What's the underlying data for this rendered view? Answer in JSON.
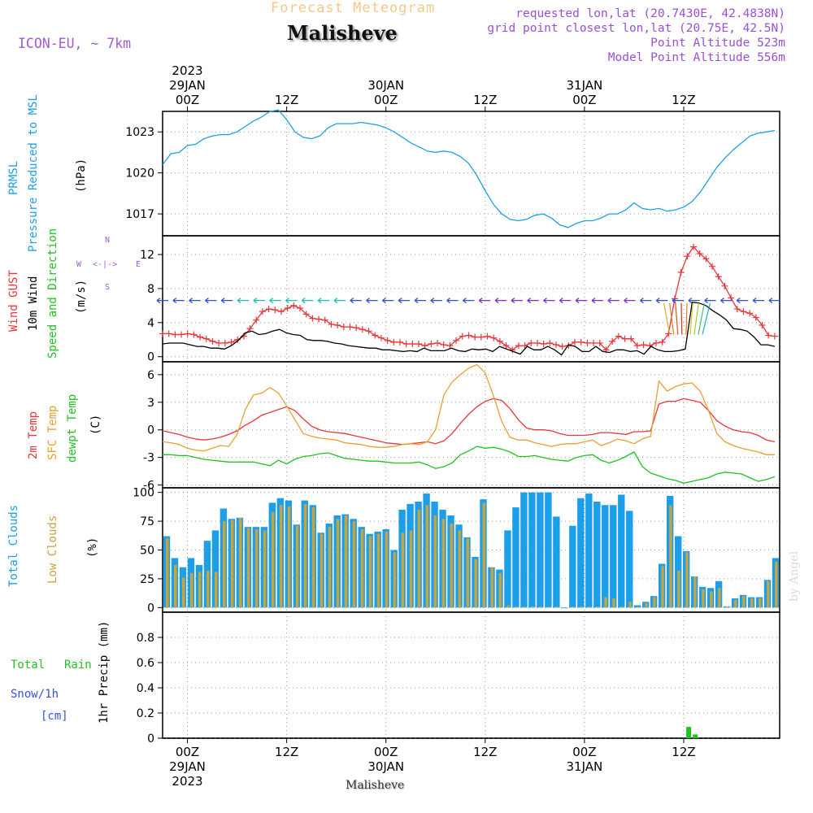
{
  "header": {
    "faint_title": "Forecast Meteogram",
    "location": "Malisheve",
    "model": "ICON-EU, ~ 7km",
    "requested": "requested lon,lat (20.7430E, 42.4838N)",
    "gridpoint": "grid point closest lon,lat (20.75E, 42.5N)",
    "point_alt": "Point Altitude 523m",
    "model_alt": "Model Point Altitude 556m",
    "credit": "by Angel",
    "footer_location": "Malisheve"
  },
  "time_axis": {
    "top": [
      {
        "t": 3,
        "lines": [
          "2023",
          "29JAN",
          "00Z"
        ]
      },
      {
        "t": 15,
        "lines": [
          "12Z"
        ]
      },
      {
        "t": 27,
        "lines": [
          "30JAN",
          "00Z"
        ]
      },
      {
        "t": 39,
        "lines": [
          "12Z"
        ]
      },
      {
        "t": 51,
        "lines": [
          "31JAN",
          "00Z"
        ]
      },
      {
        "t": 63,
        "lines": [
          "12Z"
        ]
      }
    ],
    "bottom": [
      {
        "t": 3,
        "lines": [
          "00Z",
          "29JAN",
          "2023"
        ]
      },
      {
        "t": 15,
        "lines": [
          "12Z"
        ]
      },
      {
        "t": 27,
        "lines": [
          "00Z",
          "30JAN"
        ]
      },
      {
        "t": 39,
        "lines": [
          "12Z"
        ]
      },
      {
        "t": 51,
        "lines": [
          "00Z",
          "31JAN"
        ]
      },
      {
        "t": 63,
        "lines": [
          "12Z"
        ]
      }
    ]
  },
  "panel_labels": {
    "pressure": {
      "line1": "PRMSL",
      "line2": "Pressure Reduced to MSL",
      "unit": "(hPa)",
      "color1": "#1ca0e6",
      "color2": "#1ca0e6"
    },
    "wind": {
      "gust": "Wind GUST",
      "wind10": "10m Wind",
      "speed": "Speed and Direction",
      "unit": "(m/s)",
      "compass_n": "N",
      "compass_s": "S",
      "compass_w": "W",
      "compass_e": "E",
      "compass_arrows": "<-|->"
    },
    "temp": {
      "t2m": "2m Temp",
      "sfc": "SFC Temp",
      "dew": "dewpt Temp",
      "unit": "(C)"
    },
    "clouds": {
      "total": "Total Clouds",
      "low": "Low Clouds",
      "unit": "(%)"
    },
    "precip": {
      "total": "Total",
      "rain": "Rain",
      "snow": "Snow/1h",
      "cm": "[cm]",
      "unit": "1hr Precip (mm)"
    }
  },
  "colors": {
    "pressure": "#1ca0e6",
    "gust": "#e8363b",
    "wind10": "#000000",
    "t2m": "#e8363b",
    "sfc": "#e8a030",
    "dew": "#1fc21f",
    "total_clouds": "#1c9ee8",
    "low_clouds": "#c9a33c",
    "rain": "#1fc21f",
    "snow": "#3a4fe6"
  },
  "chart_data": [
    {
      "type": "line",
      "name": "PRMSL",
      "unit": "hPa",
      "x_unit": "hours from 28JAN 21Z",
      "yticks": [
        1017,
        1020,
        1023
      ],
      "ylim": [
        1015.4,
        1024.5
      ],
      "x": [
        0,
        1,
        2,
        3,
        4,
        5,
        6,
        7,
        8,
        9,
        10,
        11,
        12,
        13,
        14,
        15,
        16,
        17,
        18,
        19,
        20,
        21,
        22,
        23,
        24,
        25,
        26,
        27,
        28,
        29,
        30,
        31,
        32,
        33,
        34,
        35,
        36,
        37,
        38,
        39,
        40,
        41,
        42,
        43,
        44,
        45,
        46,
        47,
        48,
        49,
        50,
        51,
        52,
        53,
        54,
        55,
        56,
        57,
        58,
        59,
        60,
        61,
        62,
        63,
        64,
        65,
        66,
        67,
        68,
        69,
        70,
        71,
        72,
        73,
        74
      ],
      "values": [
        1020.6,
        1021.4,
        1021.5,
        1022.0,
        1022.1,
        1022.5,
        1022.7,
        1022.8,
        1022.8,
        1023.0,
        1023.4,
        1023.8,
        1024.1,
        1024.5,
        1024.6,
        1023.9,
        1023.0,
        1022.6,
        1022.5,
        1022.7,
        1023.3,
        1023.6,
        1023.6,
        1023.6,
        1023.7,
        1023.6,
        1023.5,
        1023.3,
        1023.0,
        1022.6,
        1022.2,
        1021.9,
        1021.6,
        1021.5,
        1021.6,
        1021.5,
        1021.2,
        1020.7,
        1019.8,
        1018.7,
        1017.7,
        1017.0,
        1016.6,
        1016.5,
        1016.6,
        1016.9,
        1017.0,
        1016.7,
        1016.2,
        1016.0,
        1016.3,
        1016.5,
        1016.5,
        1016.7,
        1017.0,
        1017.0,
        1017.3,
        1017.8,
        1017.4,
        1017.3,
        1017.4,
        1017.2,
        1017.3,
        1017.5,
        1017.9,
        1018.6,
        1019.5,
        1020.4,
        1021.1,
        1021.7,
        1022.2,
        1022.7,
        1022.9,
        1023.0,
        1023.1
      ]
    },
    {
      "type": "line",
      "name": "Wind",
      "unit": "m/s",
      "yticks": [
        0,
        4,
        8,
        12
      ],
      "ylim": [
        -0.6,
        14.2
      ],
      "series": [
        {
          "name": "Wind GUST",
          "values": [
            2.7,
            2.7,
            2.6,
            2.6,
            2.7,
            2.6,
            2.3,
            2.1,
            1.8,
            1.6,
            1.6,
            1.7,
            2.0,
            2.4,
            3.3,
            4.3,
            5.3,
            5.6,
            5.5,
            5.3,
            5.7,
            6.0,
            5.7,
            5.0,
            4.5,
            4.4,
            4.3,
            3.8,
            3.7,
            3.5,
            3.5,
            3.4,
            3.2,
            3.0,
            2.5,
            2.2,
            1.9,
            1.7,
            1.7,
            1.5,
            1.5,
            1.5,
            1.3,
            1.5,
            1.6,
            1.4,
            1.3,
            1.9,
            2.4,
            2.5,
            2.3,
            2.3,
            2.4,
            2.2,
            1.8,
            1.3,
            0.8,
            1.3,
            1.3,
            1.6,
            1.6,
            1.5,
            1.6,
            1.4,
            1.2,
            1.3,
            1.7,
            1.7,
            1.6,
            1.6,
            1.6,
            0.8,
            1.8,
            2.4,
            2.1,
            2.1,
            1.3,
            1.4,
            1.3,
            1.6,
            1.7,
            2.7,
            6.8,
            9.9,
            11.8,
            12.9,
            12.1,
            11.5,
            10.6,
            9.4,
            8.3,
            6.9,
            5.6,
            5.3,
            5.1,
            4.6,
            3.7,
            2.5,
            2.4
          ]
        },
        {
          "name": "10m Wind",
          "values": [
            1.5,
            1.6,
            1.6,
            1.6,
            1.4,
            1.2,
            1.2,
            1.0,
            1.0,
            0.9,
            1.3,
            1.9,
            2.8,
            3.0,
            2.6,
            2.7,
            3.0,
            3.2,
            2.8,
            2.6,
            2.5,
            2.0,
            1.9,
            1.9,
            1.8,
            1.6,
            1.5,
            1.3,
            1.2,
            1.1,
            1.0,
            1.0,
            0.8,
            0.8,
            0.7,
            0.6,
            0.7,
            0.6,
            1.0,
            0.7,
            0.7,
            0.7,
            1.0,
            0.7,
            0.6,
            0.9,
            0.8,
            0.9,
            0.6,
            1.2,
            0.9,
            0.6,
            0.3,
            1.2,
            0.8,
            0.8,
            1.2,
            0.8,
            0.2,
            1.4,
            1.2,
            0.6,
            0.6,
            1.2,
            0.6,
            0.5,
            0.8,
            0.8,
            0.6,
            0.7,
            0.3,
            1.2,
            0.8,
            0.6,
            0.6,
            0.7,
            0.9,
            6.4,
            6.3,
            6.0,
            5.4,
            4.9,
            4.3,
            3.3,
            3.2,
            3.0,
            2.3,
            1.4,
            1.4,
            1.2
          ]
        },
        {
          "name": "wind barbs",
          "values": [
            6.6,
            6.6,
            6.6,
            6.6,
            6.6,
            6.6,
            6.6,
            6.6,
            6.6,
            6.6,
            6.6,
            6.6,
            6.6,
            6.6,
            6.6,
            6.6,
            6.6,
            6.6,
            6.6,
            6.6,
            6.6,
            6.6,
            6.6,
            6.6,
            6.6,
            6.6,
            6.6,
            6.6,
            6.6,
            6.6,
            6.6,
            6.6,
            6.6,
            6.6,
            6.6,
            6.6,
            6.6,
            6.6,
            6.6
          ]
        }
      ]
    },
    {
      "type": "line",
      "name": "Temperature",
      "unit": "C",
      "yticks": [
        -6,
        -3,
        0,
        3,
        6
      ],
      "ylim": [
        -6.3,
        7.4
      ],
      "x": [
        0,
        1,
        2,
        3,
        4,
        5,
        6,
        7,
        8,
        9,
        10,
        11,
        12,
        13,
        14,
        15,
        16,
        17,
        18,
        19,
        20,
        21,
        22,
        23,
        24,
        25,
        26,
        27,
        28,
        29,
        30,
        31,
        32,
        33,
        34,
        35,
        36,
        37,
        38,
        39,
        40,
        41,
        42,
        43,
        44,
        45,
        46,
        47,
        48,
        49,
        50,
        51,
        52,
        53,
        54,
        55,
        56,
        57,
        58,
        59,
        60,
        61,
        62,
        63,
        64,
        65,
        66,
        67,
        68,
        69,
        70,
        71,
        72,
        73,
        74
      ],
      "series": [
        {
          "name": "2m Temp",
          "values": [
            -0.1,
            -0.3,
            -0.5,
            -0.8,
            -1.0,
            -1.1,
            -1.0,
            -0.8,
            -0.5,
            -0.1,
            0.5,
            1.0,
            1.6,
            1.9,
            2.2,
            2.5,
            2.1,
            1.2,
            0.4,
            0.0,
            -0.2,
            -0.3,
            -0.4,
            -0.6,
            -0.8,
            -1.0,
            -1.2,
            -1.4,
            -1.5,
            -1.6,
            -1.5,
            -1.4,
            -1.3,
            -1.5,
            -1.2,
            -0.4,
            0.7,
            1.7,
            2.5,
            3.1,
            3.4,
            3.2,
            2.3,
            1.1,
            0.2,
            0.0,
            0.0,
            -0.1,
            -0.4,
            -0.6,
            -0.6,
            -0.6,
            -0.5,
            -0.3,
            -0.3,
            -0.4,
            -0.5,
            -0.2,
            -0.2,
            -0.1,
            2.8,
            3.1,
            3.1,
            3.4,
            3.2,
            3.0,
            2.1,
            1.0,
            0.4,
            0.0,
            -0.2,
            -0.3,
            -0.6,
            -1.1,
            -1.3
          ]
        },
        {
          "name": "SFC Temp",
          "values": [
            -1.3,
            -1.4,
            -1.6,
            -2.0,
            -2.2,
            -2.3,
            -2.0,
            -1.7,
            -1.8,
            -0.5,
            2.2,
            3.8,
            4.0,
            4.6,
            4.0,
            2.6,
            1.1,
            -0.4,
            -0.7,
            -0.9,
            -1.0,
            -1.1,
            -1.4,
            -1.5,
            -1.6,
            -1.8,
            -1.9,
            -1.9,
            -1.8,
            -1.6,
            -1.5,
            -1.6,
            -1.3,
            0.0,
            3.8,
            5.2,
            6.0,
            6.7,
            7.1,
            6.2,
            3.7,
            0.9,
            -0.8,
            -1.1,
            -1.1,
            -1.4,
            -1.6,
            -1.8,
            -1.6,
            -1.5,
            -1.5,
            -1.3,
            -1.1,
            -1.7,
            -1.4,
            -1.0,
            -1.2,
            -1.5,
            -1.0,
            -0.7,
            5.3,
            4.2,
            4.7,
            5.0,
            5.1,
            4.2,
            2.1,
            -0.4,
            -1.3,
            -1.7,
            -2.0,
            -2.2,
            -2.4,
            -2.7,
            -2.7
          ]
        },
        {
          "name": "dewpt Temp",
          "values": [
            -2.7,
            -2.7,
            -2.8,
            -2.8,
            -3.0,
            -3.2,
            -3.3,
            -3.4,
            -3.5,
            -3.5,
            -3.5,
            -3.5,
            -3.7,
            -3.9,
            -3.3,
            -3.7,
            -3.2,
            -2.9,
            -2.8,
            -2.6,
            -2.5,
            -2.8,
            -3.1,
            -3.2,
            -3.3,
            -3.4,
            -3.4,
            -3.5,
            -3.6,
            -3.6,
            -3.6,
            -3.5,
            -3.8,
            -4.2,
            -4.0,
            -3.6,
            -2.7,
            -2.3,
            -1.8,
            -2.0,
            -1.9,
            -2.1,
            -2.4,
            -2.9,
            -2.9,
            -2.8,
            -3.0,
            -3.2,
            -3.3,
            -3.4,
            -3.0,
            -2.8,
            -2.7,
            -3.3,
            -3.6,
            -3.3,
            -2.9,
            -2.4,
            -4.0,
            -4.7,
            -5.0,
            -5.3,
            -5.5,
            -5.8,
            -5.6,
            -5.4,
            -5.2,
            -4.8,
            -4.6,
            -4.7,
            -4.8,
            -5.2,
            -5.6,
            -5.4,
            -5.1
          ]
        }
      ]
    },
    {
      "type": "bar",
      "name": "Clouds",
      "unit": "%",
      "yticks": [
        0,
        25,
        50,
        75,
        100
      ],
      "ylim": [
        -4,
        104
      ],
      "series": [
        {
          "name": "Total Clouds",
          "values": [
            62,
            43,
            35,
            43,
            37,
            58,
            67,
            86,
            77,
            78,
            70,
            70,
            70,
            91,
            95,
            93,
            72,
            93,
            89,
            65,
            73,
            80,
            81,
            77,
            70,
            64,
            66,
            68,
            50,
            85,
            90,
            92,
            99,
            92,
            85,
            80,
            72,
            61,
            44,
            94,
            35,
            33,
            67,
            87,
            100,
            100,
            100,
            100,
            79,
            0,
            71,
            95,
            99,
            92,
            89,
            89,
            98,
            84,
            2,
            5,
            10,
            38,
            97,
            62,
            49,
            27,
            18,
            17,
            23,
            1,
            8,
            11,
            9,
            9,
            24,
            43
          ]
        },
        {
          "name": "Low Clouds",
          "values": [
            60,
            37,
            26,
            30,
            31,
            32,
            31,
            75,
            76,
            78,
            69,
            68,
            67,
            83,
            89,
            88,
            71,
            90,
            87,
            64,
            70,
            77,
            80,
            75,
            68,
            62,
            64,
            66,
            48,
            65,
            67,
            85,
            89,
            80,
            77,
            73,
            67,
            60,
            42,
            91,
            35,
            30,
            2,
            1,
            1,
            1,
            1,
            1,
            1,
            0,
            1,
            1,
            1,
            1,
            9,
            8,
            1,
            5,
            1,
            4,
            9,
            36,
            89,
            32,
            48,
            27,
            16,
            14,
            17,
            1,
            7,
            10,
            8,
            8,
            23,
            40
          ]
        }
      ]
    },
    {
      "type": "bar",
      "name": "1hr Precip",
      "unit": "mm",
      "yticks": [
        0,
        0.2,
        0.4,
        0.6,
        0.8
      ],
      "ylim": [
        0,
        1.0
      ],
      "series": [
        {
          "name": "Total Rain",
          "bars": [
            {
              "t": 63.6,
              "value": 0.09
            },
            {
              "t": 64.4,
              "value": 0.03
            }
          ]
        },
        {
          "name": "Snow/1h",
          "bars": []
        }
      ]
    }
  ]
}
